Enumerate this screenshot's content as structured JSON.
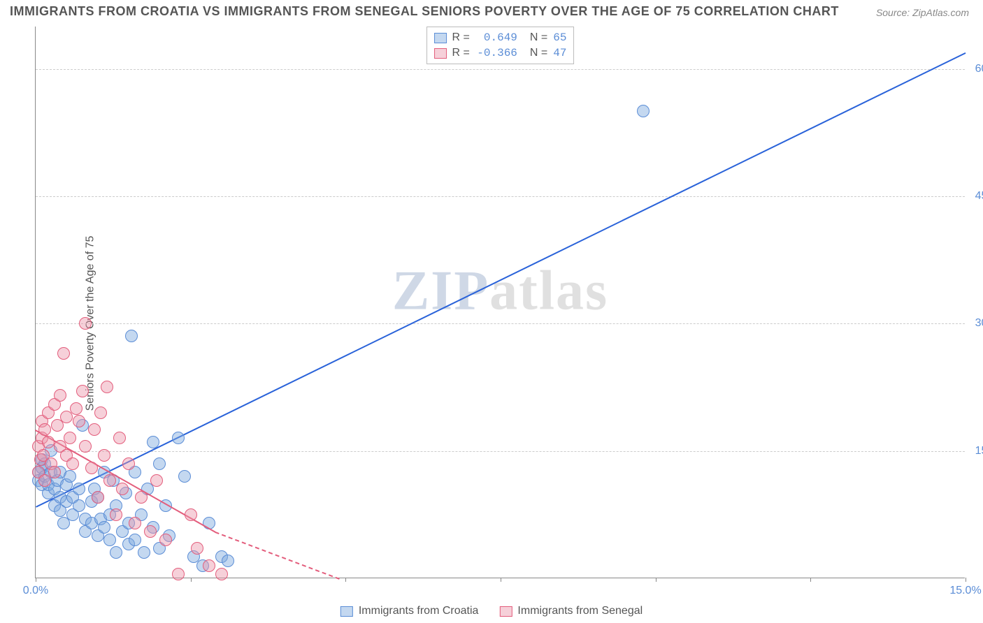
{
  "title": "IMMIGRANTS FROM CROATIA VS IMMIGRANTS FROM SENEGAL SENIORS POVERTY OVER THE AGE OF 75 CORRELATION CHART",
  "source": "Source: ZipAtlas.com",
  "y_axis_label": "Seniors Poverty Over the Age of 75",
  "watermark_a": "ZIP",
  "watermark_b": "atlas",
  "chart": {
    "type": "scatter",
    "xlim": [
      0,
      15
    ],
    "ylim": [
      0,
      65
    ],
    "xticks": [
      0,
      2.5,
      5,
      7.5,
      10,
      12.5,
      15
    ],
    "xtick_labels": {
      "0": "0.0%",
      "15": "15.0%"
    },
    "yticks": [
      15,
      30,
      45,
      60
    ],
    "ytick_labels": {
      "15": "15.0%",
      "30": "30.0%",
      "45": "45.0%",
      "60": "60.0%"
    },
    "grid_color": "#cccccc",
    "background_color": "#ffffff",
    "axis_color": "#888888",
    "point_radius": 9,
    "point_border_width": 1,
    "line_width": 2
  },
  "series": [
    {
      "name": "Immigrants from Croatia",
      "fill_color": "rgba(125, 168, 222, 0.45)",
      "stroke_color": "#5b8dd6",
      "line_color": "#2962d9",
      "R": "0.649",
      "N": "65",
      "trend": {
        "x1": 0,
        "y1": 8.5,
        "x2": 15,
        "y2": 62,
        "dash": false
      },
      "points": [
        [
          0.05,
          14
        ],
        [
          0.05,
          13
        ],
        [
          0.1,
          15.5
        ],
        [
          0.1,
          14.5
        ],
        [
          0.1,
          12.5
        ],
        [
          0.15,
          15
        ],
        [
          0.15,
          13.5
        ],
        [
          0.2,
          11.5
        ],
        [
          0.2,
          12.5
        ],
        [
          0.25,
          16.5
        ],
        [
          0.25,
          14
        ],
        [
          0.3,
          12
        ],
        [
          0.3,
          10
        ],
        [
          0.35,
          13
        ],
        [
          0.4,
          11
        ],
        [
          0.4,
          9.5
        ],
        [
          0.4,
          14
        ],
        [
          0.45,
          8
        ],
        [
          0.5,
          12.5
        ],
        [
          0.5,
          10.5
        ],
        [
          0.55,
          13.5
        ],
        [
          0.6,
          11
        ],
        [
          0.6,
          9
        ],
        [
          0.7,
          12
        ],
        [
          0.7,
          10
        ],
        [
          0.75,
          19.5
        ],
        [
          0.8,
          8.5
        ],
        [
          0.8,
          7
        ],
        [
          0.9,
          10.5
        ],
        [
          0.9,
          8
        ],
        [
          0.95,
          12
        ],
        [
          1.0,
          6.5
        ],
        [
          1.0,
          11
        ],
        [
          1.05,
          8.5
        ],
        [
          1.1,
          14
        ],
        [
          1.1,
          7.5
        ],
        [
          1.2,
          9
        ],
        [
          1.2,
          6
        ],
        [
          1.25,
          13
        ],
        [
          1.3,
          4.5
        ],
        [
          1.3,
          10
        ],
        [
          1.4,
          7
        ],
        [
          1.45,
          11.5
        ],
        [
          1.5,
          5.5
        ],
        [
          1.5,
          8
        ],
        [
          1.55,
          30
        ],
        [
          1.6,
          14
        ],
        [
          1.6,
          6
        ],
        [
          1.7,
          9
        ],
        [
          1.75,
          4.5
        ],
        [
          1.8,
          12
        ],
        [
          1.9,
          17.5
        ],
        [
          1.9,
          7.5
        ],
        [
          2.0,
          5
        ],
        [
          2.0,
          15
        ],
        [
          2.1,
          10
        ],
        [
          2.15,
          6.5
        ],
        [
          2.3,
          18
        ],
        [
          2.4,
          13.5
        ],
        [
          2.55,
          4
        ],
        [
          2.7,
          3
        ],
        [
          2.8,
          8
        ],
        [
          3.0,
          4
        ],
        [
          3.1,
          3.5
        ],
        [
          9.8,
          56.5
        ]
      ]
    },
    {
      "name": "Immigrants from Senegal",
      "fill_color": "rgba(236, 150, 170, 0.45)",
      "stroke_color": "#e35d7c",
      "line_color": "#e35d7c",
      "R": "-0.366",
      "N": "47",
      "trend": {
        "x1": 0,
        "y1": 17.5,
        "x2": 2.9,
        "y2": 5.5,
        "dash": false
      },
      "trend_dash": {
        "x1": 2.9,
        "y1": 5.5,
        "x2": 4.9,
        "y2": 0
      },
      "points": [
        [
          0.05,
          17
        ],
        [
          0.05,
          14
        ],
        [
          0.08,
          15.5
        ],
        [
          0.1,
          20
        ],
        [
          0.1,
          18
        ],
        [
          0.12,
          16
        ],
        [
          0.15,
          19
        ],
        [
          0.15,
          13
        ],
        [
          0.2,
          21
        ],
        [
          0.2,
          17.5
        ],
        [
          0.25,
          15
        ],
        [
          0.3,
          22
        ],
        [
          0.3,
          14
        ],
        [
          0.35,
          19.5
        ],
        [
          0.4,
          17
        ],
        [
          0.4,
          23
        ],
        [
          0.45,
          28
        ],
        [
          0.5,
          16
        ],
        [
          0.5,
          20.5
        ],
        [
          0.55,
          18
        ],
        [
          0.6,
          15
        ],
        [
          0.65,
          21.5
        ],
        [
          0.7,
          20
        ],
        [
          0.75,
          23.5
        ],
        [
          0.8,
          31.5
        ],
        [
          0.8,
          17
        ],
        [
          0.9,
          14.5
        ],
        [
          0.95,
          19
        ],
        [
          1.0,
          11
        ],
        [
          1.05,
          21
        ],
        [
          1.1,
          16
        ],
        [
          1.15,
          24
        ],
        [
          1.2,
          13
        ],
        [
          1.3,
          9
        ],
        [
          1.35,
          18
        ],
        [
          1.4,
          12
        ],
        [
          1.5,
          15
        ],
        [
          1.6,
          8
        ],
        [
          1.7,
          11
        ],
        [
          1.85,
          7
        ],
        [
          1.95,
          13
        ],
        [
          2.1,
          6
        ],
        [
          2.3,
          2
        ],
        [
          2.5,
          9
        ],
        [
          2.6,
          5
        ],
        [
          2.8,
          3
        ],
        [
          3.0,
          2
        ]
      ]
    }
  ],
  "legend_top": {
    "R_label": "R =",
    "N_label": "N ="
  },
  "legend_bottom": [
    "Immigrants from Croatia",
    "Immigrants from Senegal"
  ]
}
